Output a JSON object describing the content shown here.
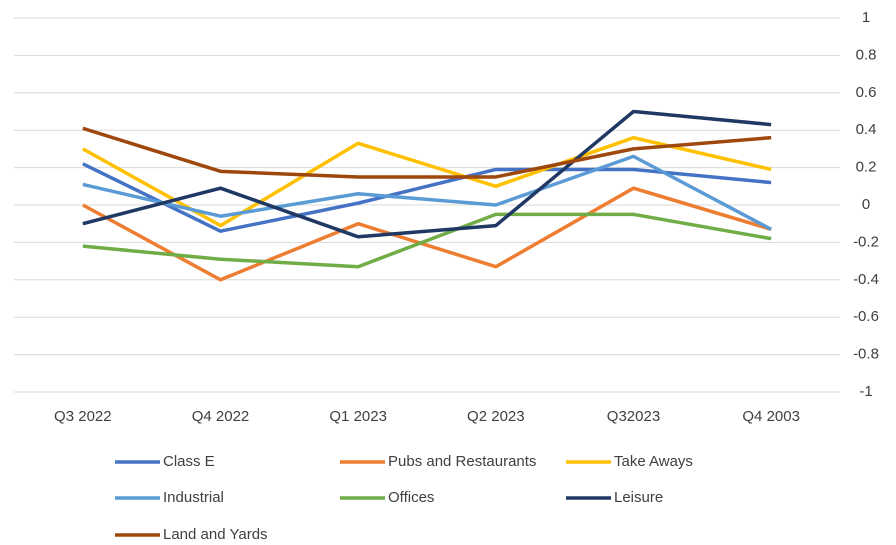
{
  "chart_data": {
    "type": "line",
    "categories": [
      "Q3 2022",
      "Q4 2022",
      "Q1 2023",
      "Q2 2023",
      "Q32023",
      "Q4 2003"
    ],
    "series": [
      {
        "name": "Class E",
        "color": "#4472c4",
        "values": [
          0.22,
          -0.14,
          0.01,
          0.19,
          0.19,
          0.12
        ]
      },
      {
        "name": "Pubs and Restaurants",
        "color": "#ed7d31",
        "values": [
          0.0,
          -0.4,
          -0.1,
          -0.33,
          0.09,
          -0.13
        ]
      },
      {
        "name": "Take Aways",
        "color": "#ffc000",
        "values": [
          0.3,
          -0.11,
          0.33,
          0.1,
          0.36,
          0.19
        ]
      },
      {
        "name": "Industrial",
        "color": "#5b9bd5",
        "values": [
          0.11,
          -0.06,
          0.06,
          0.0,
          0.26,
          -0.13
        ]
      },
      {
        "name": "Offices",
        "color": "#70ad47",
        "values": [
          -0.22,
          -0.29,
          -0.33,
          -0.05,
          -0.05,
          -0.18
        ]
      },
      {
        "name": "Leisure",
        "color": "#1f3864",
        "values": [
          -0.1,
          0.09,
          -0.17,
          -0.11,
          0.5,
          0.43
        ]
      },
      {
        "name": "Land and Yards",
        "color": "#9e480e",
        "values": [
          0.41,
          0.18,
          0.15,
          0.15,
          0.3,
          0.36
        ]
      }
    ],
    "ylim": [
      -1,
      1
    ],
    "yticks": [
      1,
      0.8,
      0.6,
      0.4,
      0.2,
      0,
      -0.2,
      -0.4,
      -0.6,
      -0.8,
      -1
    ],
    "grid": true
  }
}
